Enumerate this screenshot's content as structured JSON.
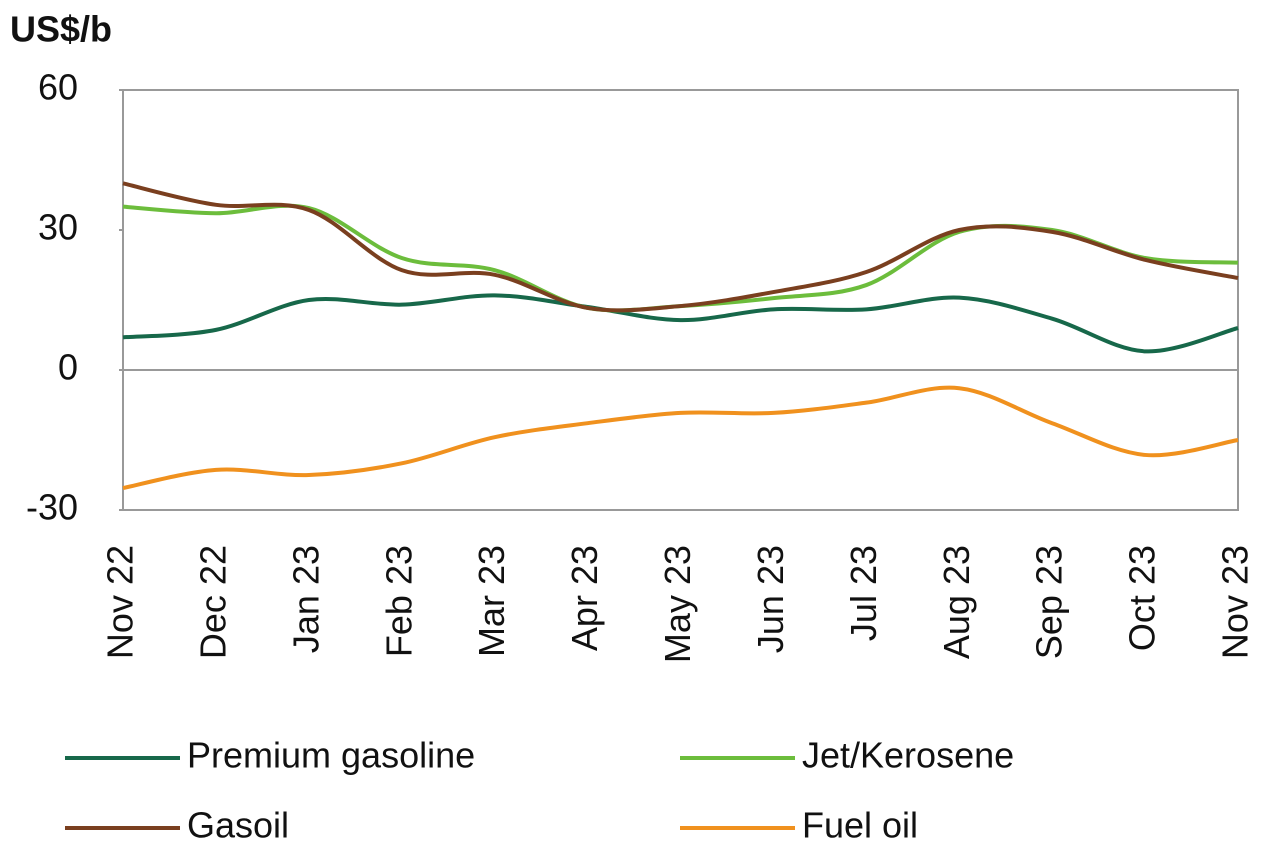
{
  "chart_data": {
    "type": "line",
    "y_label": "US$/b",
    "categories": [
      "Nov 22",
      "Dec 22",
      "Jan 23",
      "Feb 23",
      "Mar 23",
      "Apr 23",
      "May 23",
      "Jun 23",
      "Jul 23",
      "Aug 23",
      "Sep 23",
      "Oct 23",
      "Nov 23"
    ],
    "series": [
      {
        "name": "Premium gasoline",
        "color": "#17684a",
        "values": [
          7,
          8.6,
          15,
          14,
          16,
          13.5,
          10.7,
          13,
          13,
          15.5,
          11,
          4,
          9
        ]
      },
      {
        "name": "Jet/Kerosene",
        "color": "#6cbd3c",
        "values": [
          35,
          33.6,
          34.7,
          24,
          21.4,
          13.3,
          13.7,
          15.4,
          18.2,
          29.6,
          30,
          24,
          23
        ]
      },
      {
        "name": "Gasoil",
        "color": "#7a3f1f",
        "values": [
          40,
          35.4,
          34.3,
          21.4,
          20.4,
          13.3,
          13.7,
          16.7,
          21,
          30,
          29.6,
          23.6,
          19.7
        ]
      },
      {
        "name": "Fuel oil",
        "color": "#f0911e",
        "values": [
          -25.3,
          -21.4,
          -22.5,
          -20,
          -14.4,
          -11.4,
          -9.2,
          -9.2,
          -7,
          -3.9,
          -11.4,
          -18.2,
          -15
        ]
      }
    ],
    "ylim": [
      -30,
      60
    ],
    "yticks": [
      -30,
      0,
      30,
      60
    ],
    "zero_line": true
  }
}
